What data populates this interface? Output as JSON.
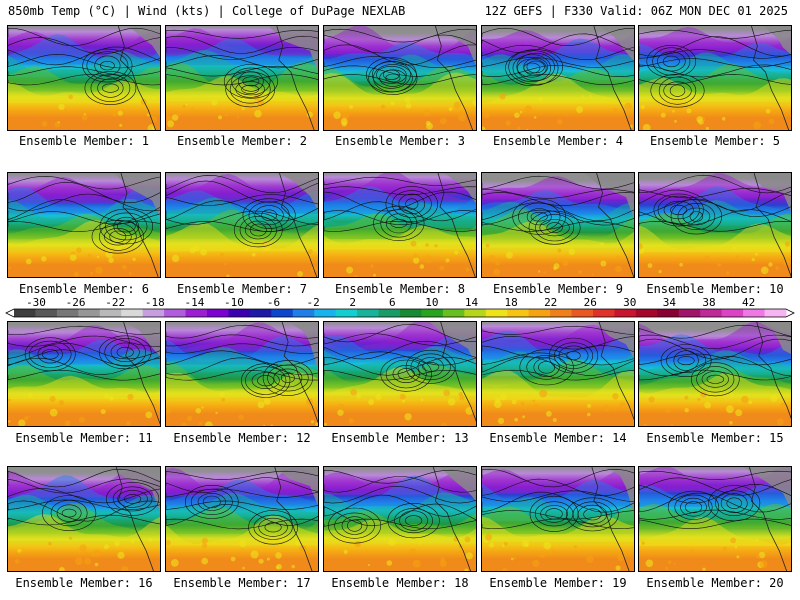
{
  "header": {
    "title": "850mb Temp (°C) | Wind (kts) | College of DuPage NEXLAB",
    "run_info": "12Z GEFS | F330 Valid: 06Z MON DEC 01 2025"
  },
  "colorbar": {
    "ticks": [
      "-30",
      "-26",
      "-22",
      "-18",
      "-14",
      "-10",
      "-6",
      "-2",
      "2",
      "6",
      "10",
      "14",
      "18",
      "22",
      "26",
      "30",
      "34",
      "38",
      "42"
    ],
    "colors": [
      "#3d3d3d",
      "#585858",
      "#777777",
      "#979797",
      "#b9b9b9",
      "#d9d9d9",
      "#c79fe0",
      "#b05ddd",
      "#9b1fd0",
      "#7c00d2",
      "#3b00b0",
      "#1d1ba6",
      "#0f47cc",
      "#1f7ee8",
      "#18b3ee",
      "#14cfd0",
      "#18b39a",
      "#1a9c68",
      "#178a34",
      "#2aa420",
      "#68c020",
      "#b6d61c",
      "#eee31a",
      "#f5c414",
      "#f5a213",
      "#f0801c",
      "#e85a22",
      "#e0312a",
      "#c8142c",
      "#a6062a",
      "#8a0032",
      "#a2146a",
      "#c02a98",
      "#dc44c6",
      "#ee78e4",
      "#f6b4f2"
    ]
  },
  "panels": [
    {
      "label": "Ensemble Member: 1"
    },
    {
      "label": "Ensemble Member: 2"
    },
    {
      "label": "Ensemble Member: 3"
    },
    {
      "label": "Ensemble Member: 4"
    },
    {
      "label": "Ensemble Member: 5"
    },
    {
      "label": "Ensemble Member: 6"
    },
    {
      "label": "Ensemble Member: 7"
    },
    {
      "label": "Ensemble Member: 8"
    },
    {
      "label": "Ensemble Member: 9"
    },
    {
      "label": "Ensemble Member: 10"
    },
    {
      "label": "Ensemble Member: 11"
    },
    {
      "label": "Ensemble Member: 12"
    },
    {
      "label": "Ensemble Member: 13"
    },
    {
      "label": "Ensemble Member: 14"
    },
    {
      "label": "Ensemble Member: 15"
    },
    {
      "label": "Ensemble Member: 16"
    },
    {
      "label": "Ensemble Member: 17"
    },
    {
      "label": "Ensemble Member: 18"
    },
    {
      "label": "Ensemble Member: 19"
    },
    {
      "label": "Ensemble Member: 20"
    }
  ]
}
